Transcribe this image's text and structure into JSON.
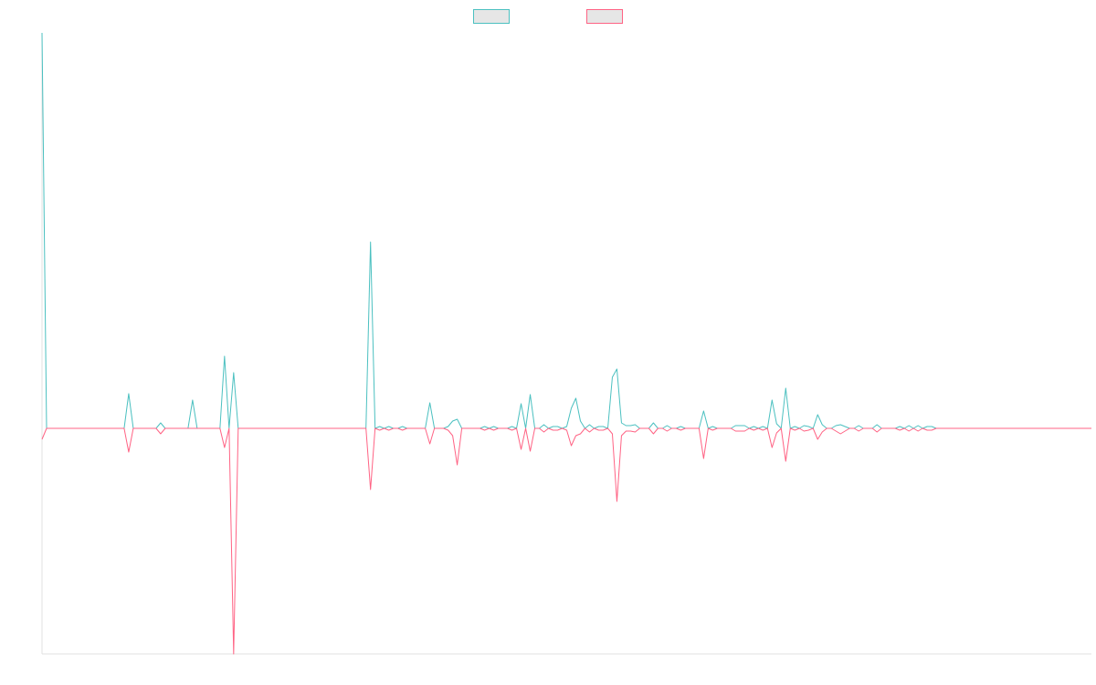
{
  "chart_data": {
    "type": "line",
    "legend": "top",
    "ylim": [
      -247,
      433
    ],
    "categories": [
      null,
      null,
      null,
      null,
      null,
      null,
      null,
      null,
      null,
      null,
      null,
      null,
      null,
      null,
      null,
      null,
      null,
      null,
      null,
      null,
      null,
      null,
      null,
      null,
      null,
      null,
      null,
      null,
      null,
      null,
      null,
      null,
      null,
      null,
      null,
      null,
      null,
      null,
      null,
      null,
      null,
      null,
      null,
      null,
      null,
      null,
      null,
      null,
      null,
      null,
      null,
      null,
      null,
      null,
      null,
      null,
      null,
      null,
      null,
      null,
      null,
      null,
      null,
      null,
      null,
      null,
      null,
      null,
      null,
      null,
      null,
      null,
      null,
      null,
      null,
      null,
      null,
      null,
      null,
      null,
      null,
      null,
      null,
      null,
      null,
      null,
      null,
      null,
      null,
      null,
      null,
      null,
      null,
      null,
      null,
      null,
      null,
      null,
      null,
      null,
      null,
      null,
      null,
      null,
      null,
      null,
      null,
      null,
      null,
      null,
      null,
      null,
      null,
      null,
      null,
      null,
      null,
      null,
      null,
      null,
      null,
      null,
      null,
      null,
      null,
      null,
      null,
      null,
      null,
      null,
      null,
      null,
      null,
      null,
      null,
      null,
      null,
      null,
      null,
      null,
      null,
      null,
      null,
      null,
      null,
      null,
      null,
      null,
      null,
      null,
      null,
      null,
      null,
      null,
      null,
      null,
      null,
      null,
      null,
      null,
      null,
      null,
      null,
      null,
      null,
      null,
      null,
      null,
      null,
      null,
      null,
      null,
      null,
      null,
      null,
      null,
      null,
      null,
      null,
      null,
      null,
      null,
      null,
      null,
      null,
      null,
      null,
      null,
      null,
      null,
      null,
      null,
      null,
      null,
      null,
      null,
      null,
      null,
      null,
      null,
      null,
      null,
      null,
      null,
      null,
      null,
      null,
      null,
      null,
      null,
      null,
      null,
      null,
      null,
      null,
      null,
      null,
      null,
      null,
      null,
      null,
      null,
      null,
      null,
      null,
      null,
      null,
      null,
      null,
      null,
      null
    ],
    "series": [
      {
        "color": "#4bc0c0",
        "values": [
          433,
          0,
          0,
          0,
          0,
          0,
          0,
          0,
          0,
          0,
          0,
          0,
          0,
          0,
          0,
          0,
          0,
          0,
          0,
          38,
          0,
          0,
          0,
          0,
          0,
          0,
          6,
          0,
          0,
          0,
          0,
          0,
          0,
          31,
          0,
          0,
          0,
          0,
          0,
          0,
          79,
          0,
          61,
          0,
          0,
          0,
          0,
          0,
          0,
          0,
          0,
          0,
          0,
          0,
          0,
          0,
          0,
          0,
          0,
          0,
          0,
          0,
          0,
          0,
          0,
          0,
          0,
          0,
          0,
          0,
          0,
          0,
          204,
          0,
          2,
          0,
          2,
          0,
          0,
          2,
          0,
          0,
          0,
          0,
          0,
          28,
          0,
          0,
          0,
          2,
          8,
          10,
          0,
          0,
          0,
          0,
          0,
          2,
          0,
          2,
          0,
          0,
          0,
          2,
          0,
          27,
          0,
          37,
          0,
          0,
          4,
          0,
          2,
          2,
          0,
          2,
          22,
          33,
          8,
          0,
          4,
          0,
          2,
          2,
          0,
          56,
          65,
          6,
          3,
          3,
          4,
          0,
          0,
          0,
          6,
          0,
          0,
          3,
          0,
          0,
          2,
          0,
          0,
          0,
          0,
          19,
          0,
          2,
          0,
          0,
          0,
          0,
          3,
          3,
          3,
          0,
          2,
          0,
          2,
          0,
          31,
          5,
          0,
          44,
          0,
          2,
          0,
          3,
          2,
          0,
          15,
          4,
          0,
          0,
          3,
          4,
          2,
          0,
          0,
          3,
          0,
          0,
          0,
          4,
          0,
          0,
          0,
          0,
          2,
          0,
          3,
          0,
          3,
          0,
          2,
          2,
          0,
          0,
          0,
          0,
          0,
          0,
          0,
          0,
          0,
          0,
          0,
          0,
          0,
          0,
          0,
          0,
          0,
          0,
          0,
          0,
          0,
          0,
          0,
          0,
          0,
          0,
          0,
          0,
          0,
          0,
          0,
          0,
          0,
          0,
          0
        ]
      },
      {
        "color": "#ff6384",
        "values": [
          -12,
          0,
          0,
          0,
          0,
          0,
          0,
          0,
          0,
          0,
          0,
          0,
          0,
          0,
          0,
          0,
          0,
          0,
          0,
          -26,
          0,
          0,
          0,
          0,
          0,
          0,
          -6,
          0,
          0,
          0,
          0,
          0,
          0,
          0,
          0,
          0,
          0,
          0,
          0,
          0,
          -21,
          0,
          -247,
          0,
          0,
          0,
          0,
          0,
          0,
          0,
          0,
          0,
          0,
          0,
          0,
          0,
          0,
          0,
          0,
          0,
          0,
          0,
          0,
          0,
          0,
          0,
          0,
          0,
          0,
          0,
          0,
          0,
          -67,
          0,
          -2,
          0,
          -2,
          0,
          0,
          -2,
          0,
          0,
          0,
          0,
          0,
          -17,
          0,
          0,
          0,
          -2,
          -8,
          -40,
          0,
          0,
          0,
          0,
          0,
          -2,
          0,
          -2,
          0,
          0,
          0,
          -2,
          0,
          -23,
          0,
          -25,
          0,
          0,
          -4,
          0,
          -2,
          -2,
          0,
          -2,
          -19,
          -8,
          -6,
          0,
          -4,
          0,
          -2,
          -2,
          0,
          -6,
          -80,
          -8,
          -3,
          -3,
          -4,
          0,
          0,
          0,
          -6,
          0,
          0,
          -3,
          0,
          0,
          -2,
          0,
          0,
          0,
          0,
          -33,
          0,
          -2,
          0,
          0,
          0,
          0,
          -3,
          -3,
          -3,
          0,
          -2,
          0,
          -2,
          0,
          -21,
          -5,
          0,
          -36,
          0,
          -2,
          0,
          -3,
          -2,
          0,
          -12,
          -4,
          0,
          0,
          -3,
          -6,
          -3,
          0,
          0,
          -3,
          0,
          0,
          0,
          -4,
          0,
          0,
          0,
          0,
          -2,
          0,
          -3,
          0,
          -3,
          0,
          -2,
          -2,
          0,
          0,
          0,
          0,
          0,
          0,
          0,
          0,
          0,
          0,
          0,
          0,
          0,
          0,
          0,
          0,
          0,
          0,
          0,
          0,
          0,
          0,
          0,
          0,
          0,
          0,
          0,
          0,
          0,
          0,
          0,
          0,
          0,
          0,
          0
        ]
      }
    ]
  }
}
